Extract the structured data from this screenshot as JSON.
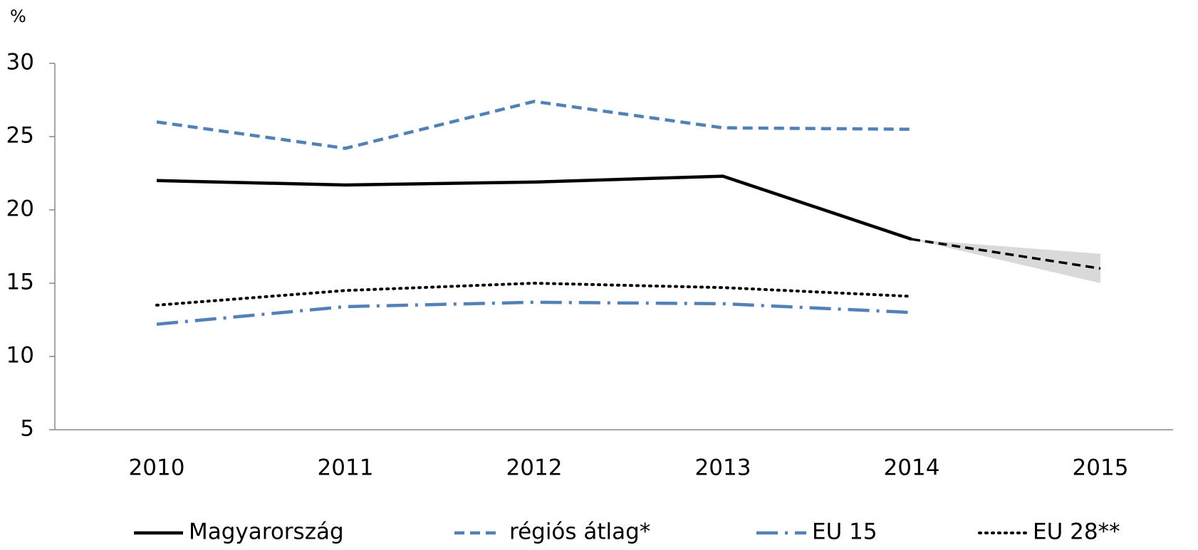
{
  "chart_data": {
    "type": "line",
    "y_label": "%",
    "categories": [
      "2010",
      "2011",
      "2012",
      "2013",
      "2014",
      "2015"
    ],
    "ylim": [
      5,
      30
    ],
    "yticks": [
      5,
      10,
      15,
      20,
      25,
      30
    ],
    "series": [
      {
        "name": "Magyarország",
        "color": "#000000",
        "style": "solid",
        "values": [
          22.0,
          21.7,
          21.9,
          22.3,
          18.0,
          null
        ]
      },
      {
        "name": "régiós átlag*",
        "color": "#4f81bd",
        "style": "dashed",
        "values": [
          26.0,
          24.2,
          27.4,
          25.6,
          25.5,
          null
        ]
      },
      {
        "name": "EU 15",
        "color": "#4f81bd",
        "style": "dashdot",
        "values": [
          12.2,
          13.4,
          13.7,
          13.6,
          13.0,
          null
        ]
      },
      {
        "name": "EU 28**",
        "color": "#000000",
        "style": "dotted",
        "values": [
          13.5,
          14.5,
          15.0,
          14.7,
          14.1,
          null
        ]
      }
    ],
    "forecast": {
      "color": "#000000",
      "band_color": "#d9d9d9",
      "style": "shortdash",
      "values": [
        null,
        null,
        null,
        null,
        18.0,
        16.0
      ],
      "lower": [
        null,
        null,
        null,
        null,
        18.0,
        15.0
      ],
      "upper": [
        null,
        null,
        null,
        null,
        18.0,
        17.0
      ]
    }
  }
}
